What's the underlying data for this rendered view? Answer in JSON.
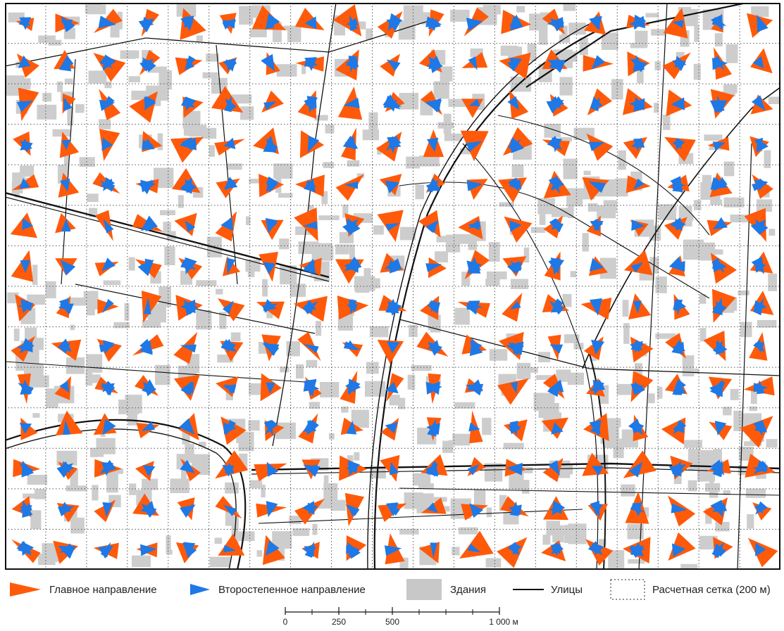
{
  "legend": {
    "main_direction": "Главное направление",
    "secondary_direction": "Второстепенное направление",
    "buildings": "Здания",
    "streets": "Улицы",
    "grid": "Расчетная сетка (200 м)"
  },
  "scale": {
    "labels": [
      "0",
      "250",
      "500",
      "1 000 м"
    ]
  },
  "colors": {
    "main": "#ff5a0a",
    "secondary": "#1e78e6",
    "buildings": "#c8c8c8",
    "streets": "#111111",
    "grid": "#555555"
  },
  "icons": {
    "main": "orange-triangle",
    "secondary": "blue-triangle",
    "buildings": "gray-rectangle",
    "streets": "black-line",
    "grid": "dotted-rectangle"
  }
}
